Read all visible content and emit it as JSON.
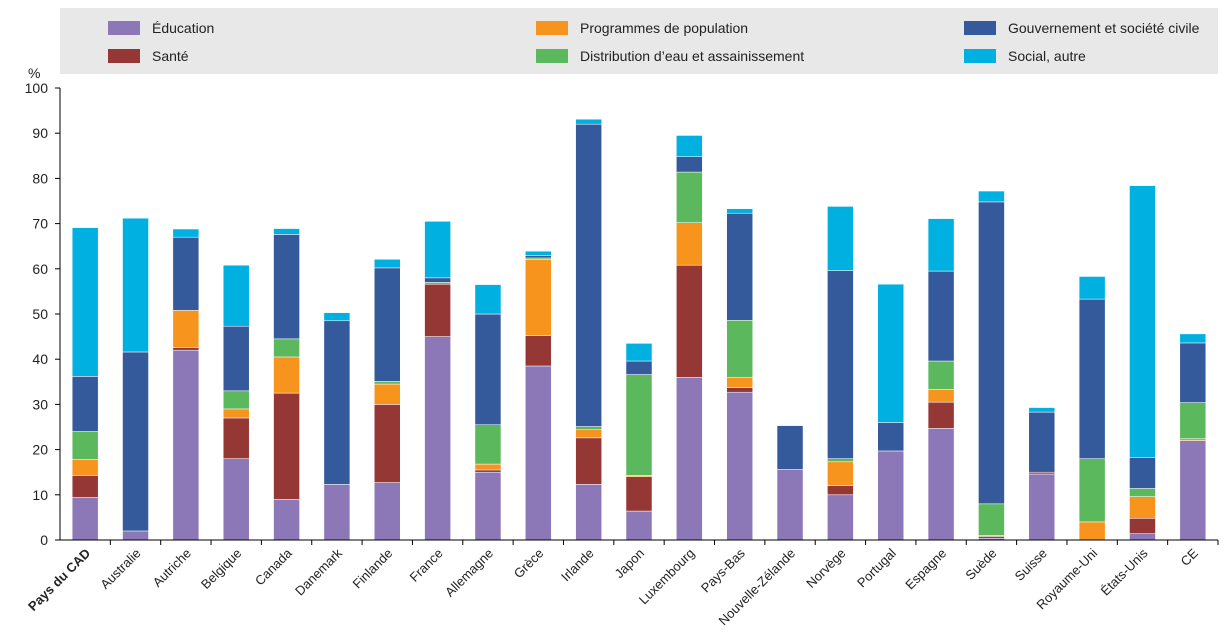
{
  "chart_data": {
    "type": "bar",
    "stacked": true,
    "unit_label": "%",
    "ylim": [
      0,
      100
    ],
    "yticks": [
      0,
      10,
      20,
      30,
      40,
      50,
      60,
      70,
      80,
      90,
      100
    ],
    "grid": false,
    "legend_position": "top",
    "categories": [
      "Pays du CAD",
      "Australie",
      "Autriche",
      "Belgique",
      "Canada",
      "Danemark",
      "Finlande",
      "France",
      "Allemagne",
      "Grèce",
      "Irlande",
      "Japon",
      "Luxembourg",
      "Pays-Bas",
      "Nouvelle-Zélande",
      "Norvège",
      "Portugal",
      "Espagne",
      "Suède",
      "Suisse",
      "Royaume-Uni",
      "États-Unis",
      "CE"
    ],
    "highlight_category": "Pays du CAD",
    "series": [
      {
        "name": "Éducation",
        "color": "#8c78b6",
        "values": [
          9.4,
          2,
          42,
          18,
          9,
          12.3,
          12.7,
          45,
          15,
          38.5,
          12.3,
          6.4,
          36,
          32.7,
          15.6,
          10,
          19.7,
          24.7,
          0.4,
          14.6,
          0,
          1.4,
          22
        ]
      },
      {
        "name": "Santé",
        "color": "#953735",
        "values": [
          4.9,
          0,
          0.6,
          9,
          23.5,
          0,
          17.3,
          11.6,
          0.5,
          6.7,
          10.3,
          7.6,
          24.8,
          1,
          0,
          2,
          0,
          5.8,
          0.4,
          0.4,
          0,
          3.4,
          0
        ]
      },
      {
        "name": "Programmes de population",
        "color": "#f7941d",
        "values": [
          3.5,
          0,
          8.2,
          2,
          8,
          0,
          4.5,
          0,
          1.3,
          16.9,
          1.8,
          0.3,
          9.4,
          2.3,
          0,
          5.3,
          0,
          2.8,
          0.2,
          0,
          4,
          4.8,
          0.4
        ]
      },
      {
        "name": "Distribution d’eau et assainissement",
        "color": "#5cb85c",
        "values": [
          6.2,
          0,
          0,
          4,
          4,
          0,
          0.6,
          0.4,
          8.7,
          0.3,
          0.7,
          22.3,
          11.2,
          12.6,
          0,
          0.7,
          0,
          6.3,
          7,
          0,
          14,
          1.8,
          8
        ]
      },
      {
        "name": "Gouvernement et société civile",
        "color": "#345a9c",
        "values": [
          12.2,
          39.6,
          16.2,
          14.3,
          23.1,
          36.2,
          25.1,
          1,
          24.5,
          0.5,
          66.9,
          3,
          3.4,
          23.7,
          9.7,
          41.6,
          6.3,
          19.9,
          66.8,
          13.3,
          35.3,
          6.8,
          13.2
        ]
      },
      {
        "name": "Social, autre",
        "color": "#00b0e0",
        "values": [
          32.9,
          29.6,
          1.8,
          13.5,
          1.3,
          1.8,
          1.9,
          12.5,
          6.5,
          1,
          1.1,
          3.9,
          4.7,
          1,
          0,
          14.2,
          30.6,
          11.6,
          2.4,
          1,
          5,
          60.2,
          2
        ]
      }
    ]
  }
}
